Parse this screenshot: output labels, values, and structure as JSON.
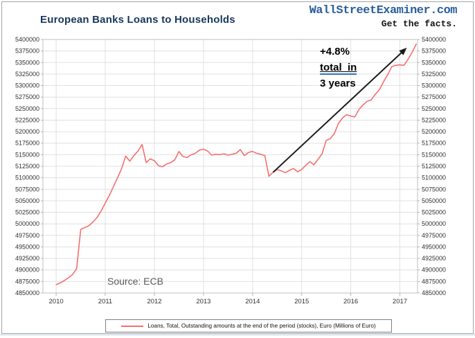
{
  "header": {
    "title": "European Banks Loans to Households",
    "brand": "WallStreetExaminer.com",
    "tagline": "Get the facts."
  },
  "annotation": {
    "line1": "+4.8%",
    "line2": "total  in",
    "line3": "3 years",
    "arrow": {
      "from_year": 2014.42,
      "from_value": 5112000,
      "to_year": 2017.1,
      "to_value": 5378000,
      "color": "#1a1a1a"
    }
  },
  "source_label": "Source: ECB",
  "legend": {
    "label": "Loans, Total, Outstanding amounts at the end of the period (stocks), Euro (Millions of Euro)",
    "line_color": "#f76d6d"
  },
  "colors": {
    "title": "#17375e",
    "brand_blue": "#2b5f9b",
    "series_line": "#f76d6d",
    "gridline": "#e0e0e0",
    "plot_border": "#bfbfbf",
    "axis_text": "#303030",
    "bottom_rule": "#b8cce4"
  },
  "chart_data": {
    "type": "line",
    "title": "European Banks Loans to Households",
    "xlabel": "",
    "ylabel": "",
    "grid": true,
    "legend_position": "bottom",
    "ylim": [
      4850000,
      5400000
    ],
    "ytick_step": 25000,
    "yticks": [
      4850000,
      4875000,
      4900000,
      4925000,
      4950000,
      4975000,
      5000000,
      5025000,
      5050000,
      5075000,
      5100000,
      5125000,
      5150000,
      5175000,
      5200000,
      5225000,
      5250000,
      5275000,
      5300000,
      5325000,
      5350000,
      5375000,
      5400000
    ],
    "xlim": [
      2009.73,
      2017.36
    ],
    "xticks": [
      2010,
      2011,
      2012,
      2013,
      2014,
      2015,
      2016,
      2017
    ],
    "series": [
      {
        "name": "Loans, Total, Outstanding amounts at the end of the period (stocks), Euro (Millions of Euro)",
        "color": "#f76d6d",
        "frequency": "monthly",
        "start": {
          "year": 2010,
          "month": 1
        },
        "values": [
          4868000,
          4872000,
          4877000,
          4883000,
          4890000,
          4903000,
          4988000,
          4992000,
          4996000,
          5004000,
          5014000,
          5028000,
          5045000,
          5062000,
          5081000,
          5100000,
          5120000,
          5147000,
          5136000,
          5148000,
          5158000,
          5172000,
          5133000,
          5141000,
          5137000,
          5126000,
          5124000,
          5130000,
          5133000,
          5139000,
          5157000,
          5146000,
          5144000,
          5150000,
          5153000,
          5160000,
          5162000,
          5158000,
          5149000,
          5151000,
          5150000,
          5152000,
          5149000,
          5151000,
          5153000,
          5161000,
          5148000,
          5155000,
          5157000,
          5153000,
          5151000,
          5148000,
          5103000,
          5112000,
          5118000,
          5115000,
          5111000,
          5116000,
          5120000,
          5113000,
          5118000,
          5127000,
          5135000,
          5128000,
          5140000,
          5152000,
          5181000,
          5185000,
          5196000,
          5218000,
          5230000,
          5237000,
          5234000,
          5232000,
          5248000,
          5258000,
          5266000,
          5269000,
          5281000,
          5291000,
          5308000,
          5323000,
          5341000,
          5344000,
          5345000,
          5344000,
          5357000,
          5372000,
          5390000
        ]
      }
    ]
  }
}
